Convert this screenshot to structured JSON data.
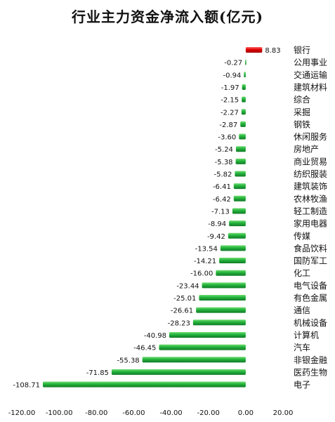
{
  "chart_data": {
    "type": "bar",
    "orientation": "horizontal",
    "title": "行业主力资金净流入额(亿元)",
    "xlabel": "",
    "ylabel": "",
    "xlim": [
      -120,
      20
    ],
    "xticks": [
      "-120.00",
      "-100.00",
      "-80.00",
      "-60.00",
      "-40.00",
      "-20.00",
      "0.00",
      "20.00"
    ],
    "grid": false,
    "legend": "none",
    "colors": {
      "positive": "#e00000",
      "negative": "#1fa53a"
    },
    "categories": [
      "银行",
      "公用事业",
      "交通运输",
      "建筑材料",
      "综合",
      "采掘",
      "钢铁",
      "休闲服务",
      "房地产",
      "商业贸易",
      "纺织服装",
      "建筑装饰",
      "农林牧渔",
      "轻工制造",
      "家用电器",
      "传媒",
      "食品饮料",
      "国防军工",
      "化工",
      "电气设备",
      "有色金属",
      "通信",
      "机械设备",
      "计算机",
      "汽车",
      "非银金融",
      "医药生物",
      "电子"
    ],
    "values": [
      8.83,
      -0.27,
      -0.94,
      -1.97,
      -2.15,
      -2.27,
      -2.87,
      -3.6,
      -5.24,
      -5.38,
      -5.82,
      -6.41,
      -6.42,
      -7.13,
      -8.94,
      -9.42,
      -13.54,
      -14.21,
      -16.0,
      -23.44,
      -25.01,
      -26.61,
      -28.23,
      -40.98,
      -46.45,
      -55.38,
      -71.85,
      -108.71
    ],
    "value_labels": [
      "8.83",
      "-0.27",
      "-0.94",
      "-1.97",
      "-2.15",
      "-2.27",
      "-2.87",
      "-3.60",
      "-5.24",
      "-5.38",
      "-5.82",
      "-6.41",
      "-6.42",
      "-7.13",
      "-8.94",
      "-9.42",
      "-13.54",
      "-14.21",
      "-16.00",
      "-23.44",
      "-25.01",
      "-26.61",
      "-28.23",
      "-40.98",
      "-46.45",
      "-55.38",
      "-71.85",
      "-108.71"
    ]
  }
}
